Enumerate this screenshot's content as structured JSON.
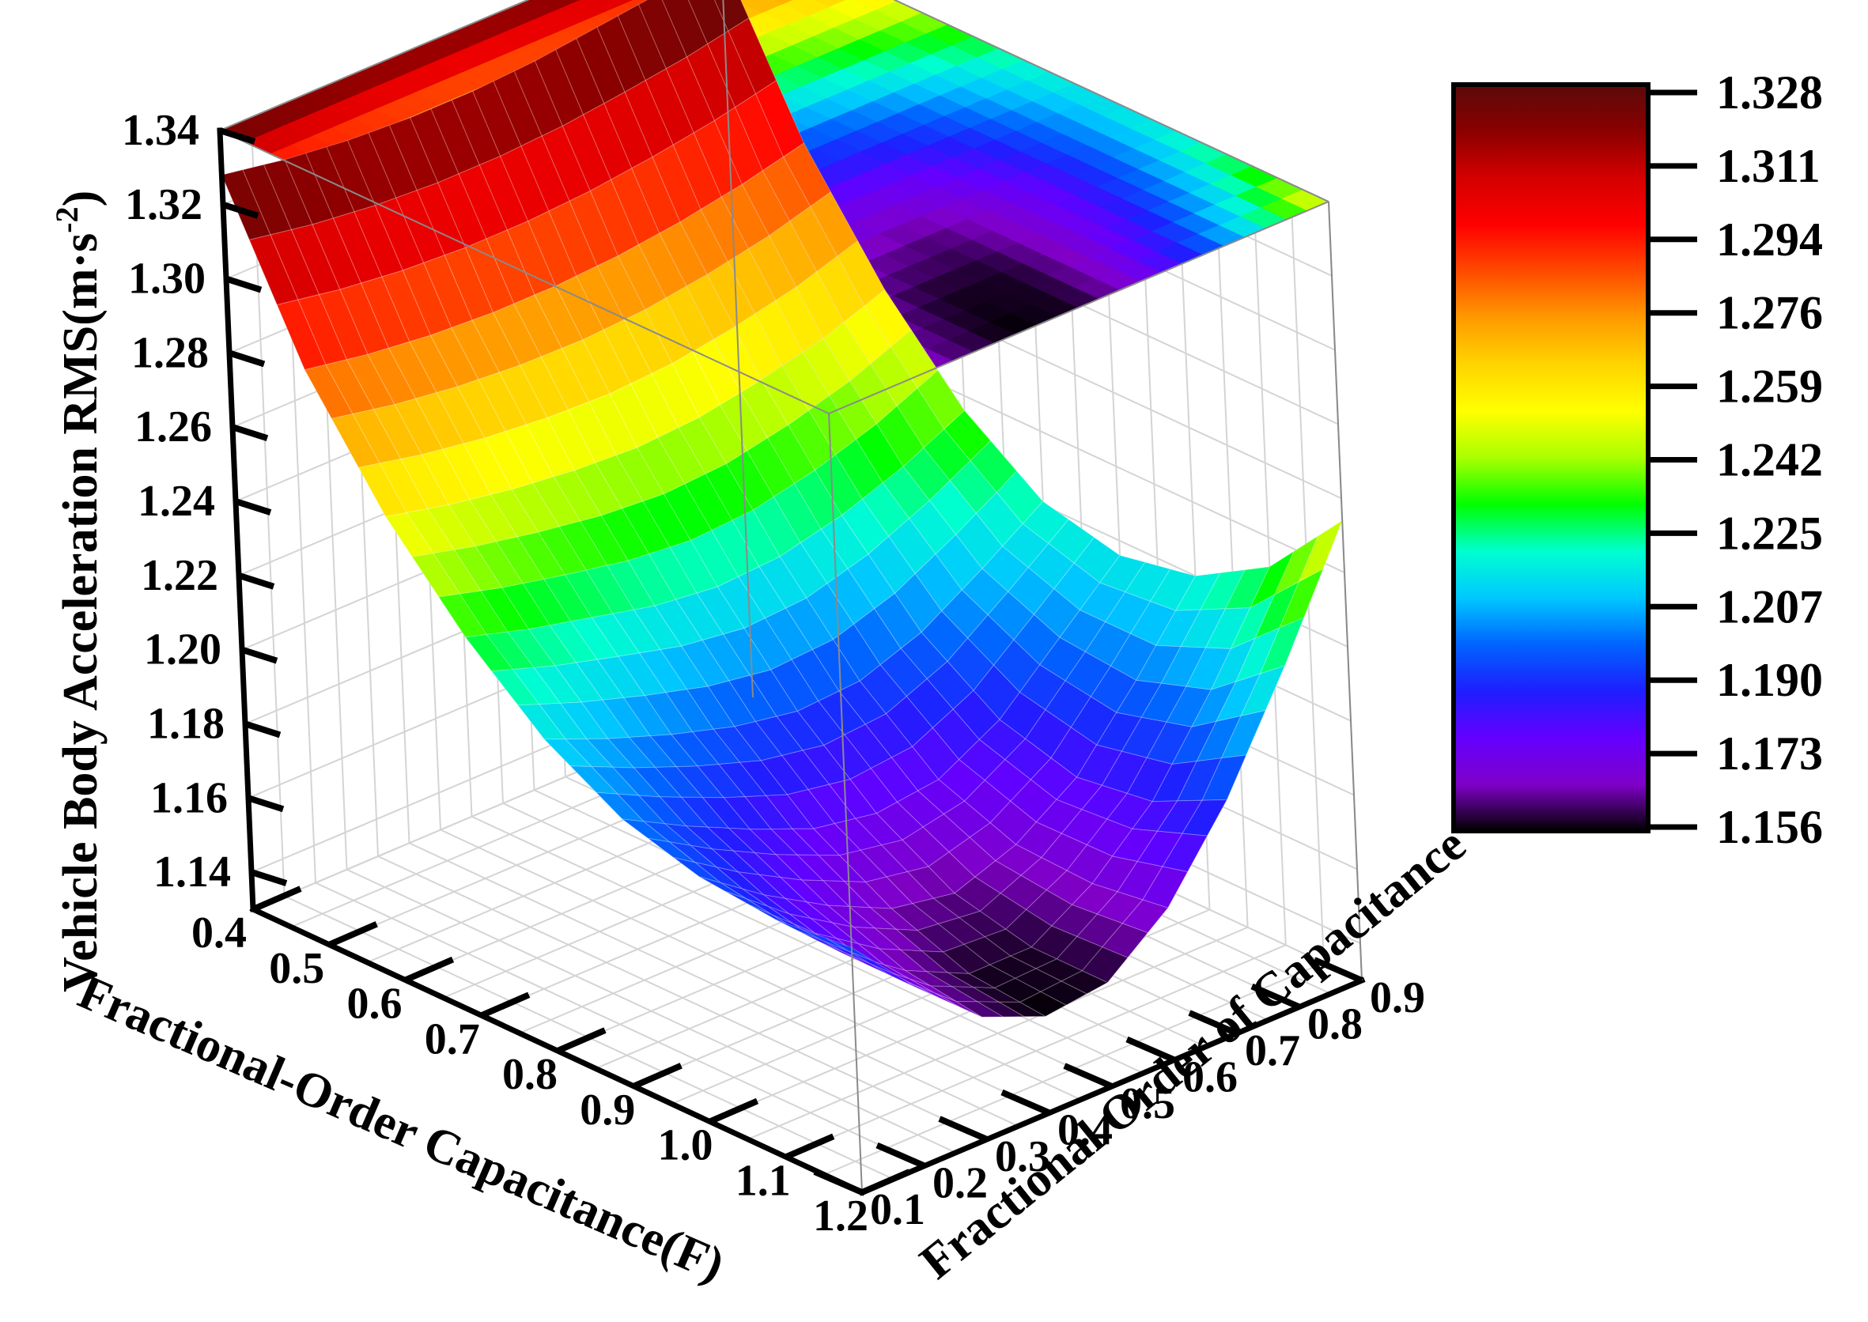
{
  "chart_data": {
    "type": "surface3d",
    "xlabel": "Fractional-Order Capacitance(F)",
    "ylabel": "Fractional Order of Capacitance",
    "zlabel_main": "Vehicle Body Acceleration RMS(m·s",
    "zlabel_sup": "-2",
    "zlabel_close": ")",
    "x_ticks": [
      "0.4",
      "0.5",
      "0.6",
      "0.7",
      "0.8",
      "0.9",
      "1.0",
      "1.1",
      "1.2"
    ],
    "y_ticks": [
      "0.1",
      "0.2",
      "0.3",
      "0.4",
      "0.5",
      "0.6",
      "0.7",
      "0.8",
      "0.9"
    ],
    "z_ticks": [
      "1.14",
      "1.16",
      "1.18",
      "1.20",
      "1.22",
      "1.24",
      "1.26",
      "1.28",
      "1.30",
      "1.32",
      "1.34"
    ],
    "x": [
      0.4,
      0.5,
      0.6,
      0.7,
      0.8,
      0.9,
      1.0,
      1.1,
      1.2
    ],
    "y": [
      0.1,
      0.2,
      0.3,
      0.4,
      0.5,
      0.6,
      0.7,
      0.8,
      0.9
    ],
    "zlim": [
      1.13,
      1.34
    ],
    "z_by_y": [
      [
        1.328,
        1.285,
        1.255,
        1.232,
        1.214,
        1.202,
        1.196,
        1.194,
        1.196
      ],
      [
        1.325,
        1.282,
        1.251,
        1.227,
        1.207,
        1.193,
        1.184,
        1.178,
        1.178
      ],
      [
        1.323,
        1.28,
        1.248,
        1.223,
        1.201,
        1.185,
        1.174,
        1.166,
        1.163
      ],
      [
        1.322,
        1.279,
        1.246,
        1.219,
        1.196,
        1.178,
        1.166,
        1.158,
        1.156
      ],
      [
        1.322,
        1.279,
        1.245,
        1.217,
        1.193,
        1.175,
        1.163,
        1.158,
        1.158
      ],
      [
        1.323,
        1.28,
        1.246,
        1.218,
        1.194,
        1.177,
        1.169,
        1.168,
        1.171
      ],
      [
        1.325,
        1.282,
        1.249,
        1.222,
        1.2,
        1.186,
        1.18,
        1.183,
        1.193
      ],
      [
        1.327,
        1.285,
        1.253,
        1.228,
        1.21,
        1.201,
        1.199,
        1.206,
        1.222
      ],
      [
        1.33,
        1.289,
        1.259,
        1.236,
        1.221,
        1.216,
        1.22,
        1.232,
        1.254
      ]
    ],
    "colorbar_ticks": [
      "1.328",
      "1.311",
      "1.294",
      "1.276",
      "1.259",
      "1.242",
      "1.225",
      "1.207",
      "1.190",
      "1.173",
      "1.156"
    ],
    "colorbar_range": [
      1.156,
      1.328
    ],
    "colormap": [
      "#5a0a0a",
      "#8b0000",
      "#d40000",
      "#ff0000",
      "#ff4a00",
      "#ff9a00",
      "#ffd400",
      "#ffff00",
      "#aaff00",
      "#00ff00",
      "#00ffd0",
      "#00c8ff",
      "#0064ff",
      "#1e1eff",
      "#6400ff",
      "#8000c8",
      "#000000"
    ],
    "projection": "top_contour_plane",
    "grid": true
  }
}
